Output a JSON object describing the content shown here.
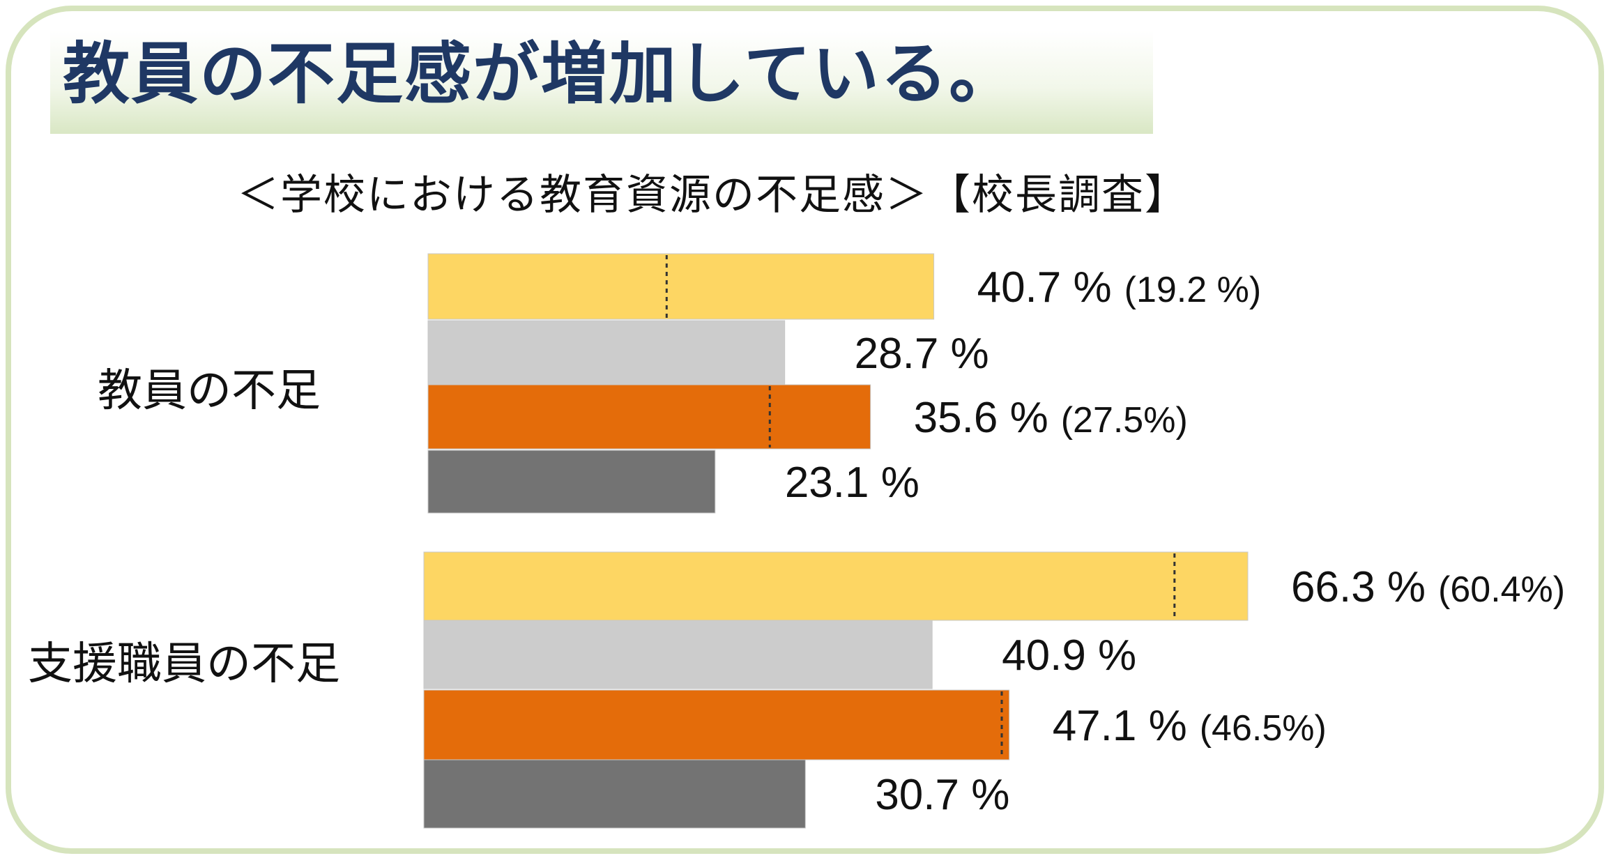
{
  "page": {
    "title": "教員の不足感が増加している。"
  },
  "chart_data": {
    "type": "bar",
    "orientation": "horizontal",
    "title": "＜学校における教育資源の不足感＞【校長調査】",
    "categories": [
      "教員の不足",
      "支援職員の不足"
    ],
    "series_colors": [
      "#fdd663",
      "#cccccc",
      "#e46c0a",
      "#737373"
    ],
    "bars": [
      [
        {
          "value": 40.7,
          "label": "40.7 %",
          "prev": 19.2,
          "prev_label": "(19.2 %)"
        },
        {
          "value": 28.7,
          "label": "28.7 %"
        },
        {
          "value": 35.6,
          "label": "35.6 %",
          "prev": 27.5,
          "prev_label": "(27.5%)"
        },
        {
          "value": 23.1,
          "label": "23.1 %"
        }
      ],
      [
        {
          "value": 66.3,
          "label": "66.3 %",
          "prev": 60.4,
          "prev_label": "(60.4%)"
        },
        {
          "value": 40.9,
          "label": "40.9 %"
        },
        {
          "value": 47.1,
          "label": "47.1 %",
          "prev": 46.5,
          "prev_label": "(46.5%)"
        },
        {
          "value": 30.7,
          "label": "30.7 %"
        }
      ]
    ]
  }
}
